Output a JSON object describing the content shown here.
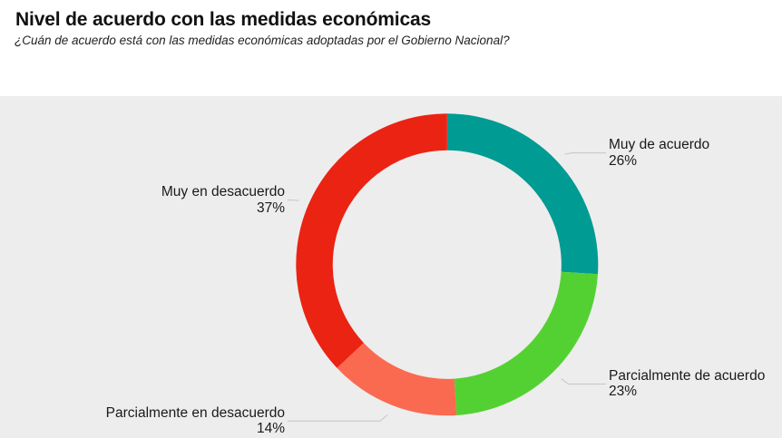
{
  "header": {
    "title": "Nivel de acuerdo con las medidas económicas",
    "subtitle": "¿Cuán de acuerdo está con las medidas económicas adoptadas por el Gobierno Nacional?"
  },
  "colors": {
    "page_background": "#ffffff",
    "panel_background": "#ededed",
    "connector_line": "#c6c6c6",
    "label_text": "#1a1a1a",
    "title_text": "#111111"
  },
  "chart_data": {
    "type": "pie",
    "subtype": "donut",
    "title": "Nivel de acuerdo con las medidas económicas",
    "subtitle": "¿Cuán de acuerdo está con las medidas económicas adoptadas por el Gobierno Nacional?",
    "unit": "%",
    "start_angle_deg": 0,
    "direction": "clockwise",
    "donut_hole_ratio": 0.757,
    "legend_position": "none",
    "labels_outside": true,
    "slices": [
      {
        "label": "Muy de acuerdo",
        "value": 26,
        "value_label": "26%",
        "color": "#009b93"
      },
      {
        "label": "Parcialmente de acuerdo",
        "value": 23,
        "value_label": "23%",
        "color": "#54d132"
      },
      {
        "label": "Parcialmente en desacuerdo",
        "value": 14,
        "value_label": "14%",
        "color": "#fa6a51"
      },
      {
        "label": "Muy en desacuerdo",
        "value": 37,
        "value_label": "37%",
        "color": "#eb2313"
      }
    ]
  }
}
